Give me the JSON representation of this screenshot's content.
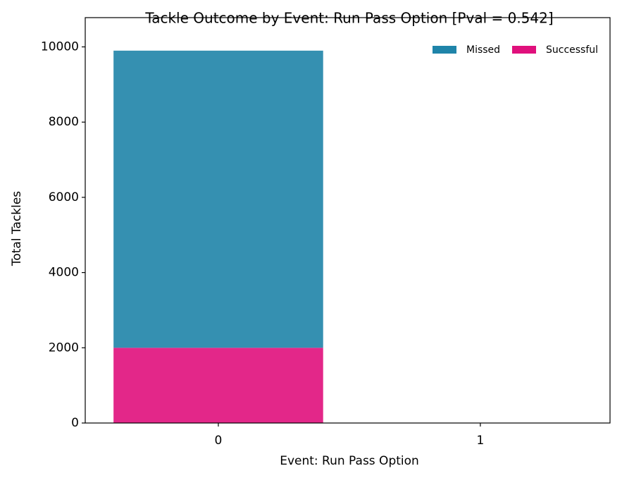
{
  "chart_data": {
    "type": "bar",
    "stacked": true,
    "title": "Tackle Outcome by Event: Run Pass Option [Pval = 0.542]",
    "x_label": "Event: Run Pass Option",
    "y_label": "Total Tackles",
    "categories": [
      "0",
      "1"
    ],
    "series": [
      {
        "name": "Missed",
        "color": "#1f84a9",
        "values": [
          7900,
          0
        ]
      },
      {
        "name": "Successful",
        "color": "#e0107c",
        "values": [
          2000,
          0
        ]
      }
    ],
    "stack_order": [
      "Successful",
      "Missed"
    ],
    "ylim": [
      0,
      10778
    ],
    "yticks": [
      0,
      2000,
      4000,
      6000,
      8000,
      10000
    ],
    "grid": false,
    "legend": "upper right"
  }
}
